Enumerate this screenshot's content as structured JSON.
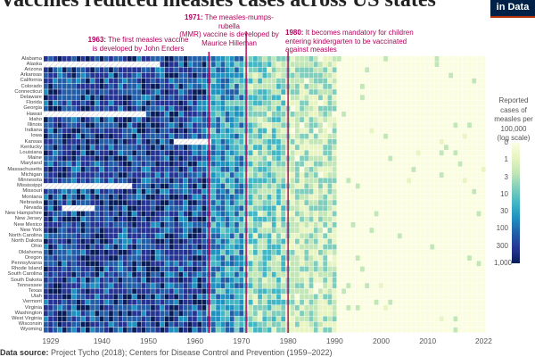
{
  "title": "Vaccines reduced measles cases across US states",
  "logo": {
    "line1": "in Data"
  },
  "annotations": [
    {
      "year_label": "1963:",
      "text_l1": "The first measles vaccine",
      "text_l2": "is developed by John Enders"
    },
    {
      "year_label": "1971:",
      "text_l1": "The measles-mumps-rubella",
      "text_l2": "(MMR) vaccine is developed by",
      "text_l3": "Maurice Hilleman"
    },
    {
      "year_label": "1980:",
      "text_l1": "It becomes mandatory for children",
      "text_l2": "entering kindergarten to be vaccinated",
      "text_l3": "against measles"
    }
  ],
  "legend": {
    "title_l1": "Reported",
    "title_l2": "cases of",
    "title_l3": "measles per",
    "title_l4": "100,000",
    "title_l5": "(log scale)",
    "ticks": [
      "0",
      "1",
      "3",
      "10",
      "30",
      "100",
      "300",
      "1,000"
    ]
  },
  "source": {
    "label": "Data source:",
    "text": "Project Tycho (2018); Centers for Disease Control and Prevention (1959–2022)"
  },
  "chart_data": {
    "type": "heatmap",
    "title": "Vaccines reduced measles cases across US states",
    "x_start": 1928,
    "x_end": 2022,
    "x_ticks": [
      1929,
      1940,
      1950,
      1960,
      1970,
      1980,
      1990,
      2000,
      2010,
      2022
    ],
    "x_tick_labels": [
      "1929",
      "1940",
      "1950",
      "1960",
      "1970",
      "1980",
      "1990",
      "2000",
      "2010",
      "2022"
    ],
    "y_categories": [
      "Alabama",
      "Alaska",
      "Arizona",
      "Arkansas",
      "California",
      "Colorado",
      "Connecticut",
      "Delaware",
      "Florida",
      "Georgia",
      "Hawaii",
      "Idaho",
      "Illinois",
      "Indiana",
      "Iowa",
      "Kansas",
      "Kentucky",
      "Louisiana",
      "Maine",
      "Maryland",
      "Massachusetts",
      "Michigan",
      "Minnesota",
      "Mississippi",
      "Missouri",
      "Montana",
      "Nebraska",
      "Nevada",
      "New Hampshire",
      "New Jersey",
      "New Mexico",
      "New York",
      "North Carolina",
      "North Dakota",
      "Ohio",
      "Oklahoma",
      "Oregon",
      "Pennsylvania",
      "Rhode Island",
      "South Carolina",
      "South Dakota",
      "Tennessee",
      "Texas",
      "Utah",
      "Vermont",
      "Virginia",
      "Washington",
      "West Virginia",
      "Wisconsin",
      "Wyoming"
    ],
    "color_scale": "log",
    "color_ticks": [
      0,
      1,
      3,
      10,
      30,
      100,
      300,
      1000
    ],
    "color_ramp": [
      "#fbfde0",
      "#e8f5c2",
      "#c2e6b5",
      "#7fcdbb",
      "#41b6c4",
      "#1d91c0",
      "#225ea8",
      "#253494",
      "#081d58"
    ],
    "typical_level_by_era": [
      {
        "years": [
          1928,
          1962
        ],
        "cases_per_100k": 300
      },
      {
        "years": [
          1963,
          1970
        ],
        "cases_per_100k": 30
      },
      {
        "years": [
          1971,
          1979
        ],
        "cases_per_100k": 3
      },
      {
        "years": [
          1980,
          1990
        ],
        "cases_per_100k": 1
      },
      {
        "years": [
          1991,
          2022
        ],
        "cases_per_100k": 0
      }
    ],
    "missing_data": [
      {
        "state": "Alaska",
        "years": [
          1928,
          1952
        ]
      },
      {
        "state": "Hawaii",
        "years": [
          1928,
          1949
        ]
      },
      {
        "state": "Kansas",
        "years": [
          1956,
          1963
        ]
      },
      {
        "state": "Mississippi",
        "years": [
          1928,
          1946
        ]
      },
      {
        "state": "Nevada",
        "years": [
          1932,
          1938
        ]
      }
    ],
    "event_lines": [
      1963,
      1971,
      1980
    ],
    "legend_title": "Reported cases of measles per 100,000 (log scale)",
    "accent_color": "#b0005a"
  }
}
